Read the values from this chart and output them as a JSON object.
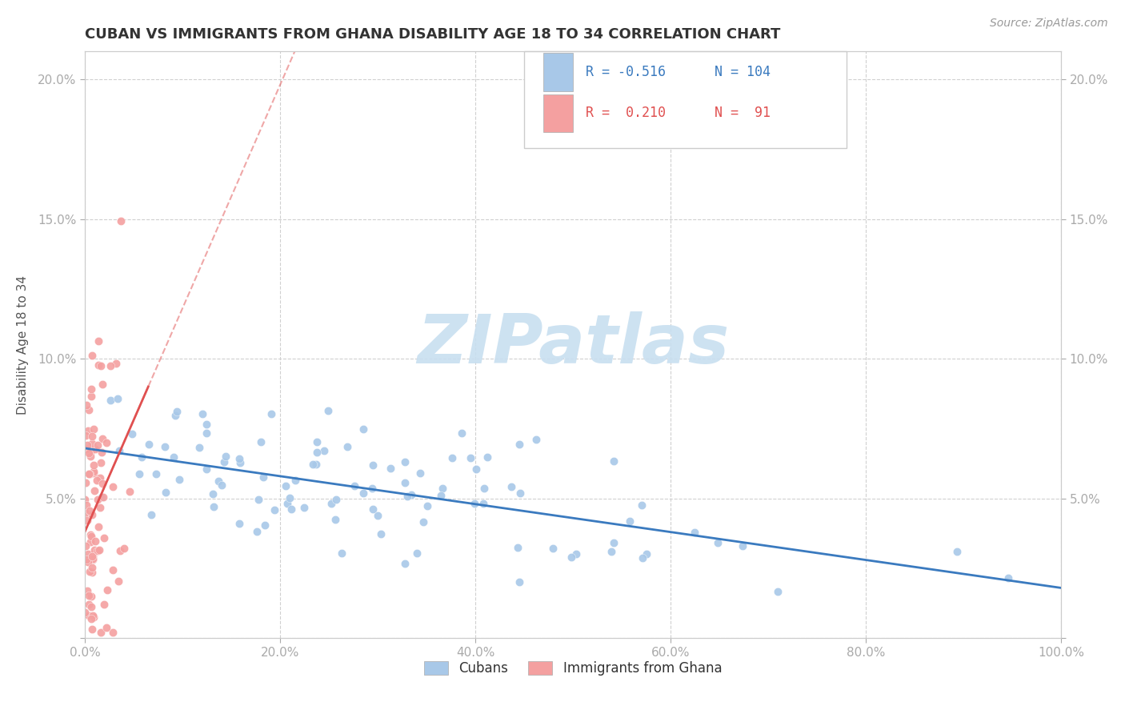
{
  "title": "CUBAN VS IMMIGRANTS FROM GHANA DISABILITY AGE 18 TO 34 CORRELATION CHART",
  "source_text": "Source: ZipAtlas.com",
  "ylabel": "Disability Age 18 to 34",
  "legend_cubans": "Cubans",
  "legend_ghana": "Immigrants from Ghana",
  "cubans_R": -0.516,
  "cubans_N": 104,
  "ghana_R": 0.21,
  "ghana_N": 91,
  "cubans_color": "#a8c8e8",
  "ghana_color": "#f4a0a0",
  "cubans_line_color": "#3a7abf",
  "ghana_line_color": "#e05050",
  "watermark_color": "#c8dff0",
  "xlim": [
    0.0,
    1.0
  ],
  "ylim": [
    0.0,
    0.21
  ],
  "xticks": [
    0.0,
    0.2,
    0.4,
    0.6,
    0.8,
    1.0
  ],
  "yticks": [
    0.0,
    0.05,
    0.1,
    0.15,
    0.2
  ],
  "xticklabels": [
    "0.0%",
    "20.0%",
    "40.0%",
    "60.0%",
    "80.0%",
    "100.0%"
  ],
  "yticklabels_left": [
    "",
    "5.0%",
    "10.0%",
    "15.0%",
    "20.0%"
  ],
  "yticklabels_right": [
    "",
    "5.0%",
    "10.0%",
    "15.0%",
    "20.0%"
  ],
  "cubans_seed": 42,
  "ghana_seed": 7,
  "legend_R1": "R = -0.516",
  "legend_N1": "N = 104",
  "legend_R2": "R =  0.210",
  "legend_N2": "N =  91"
}
